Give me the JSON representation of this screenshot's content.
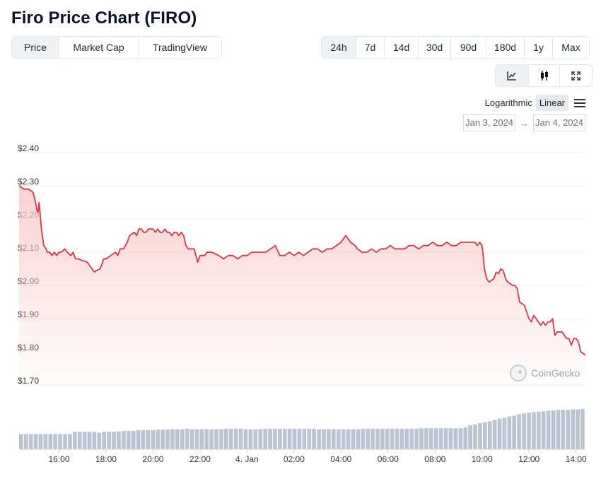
{
  "header": {
    "title": "Firo Price Chart (FIRO)"
  },
  "view_tabs": [
    {
      "label": "Price",
      "active": true
    },
    {
      "label": "Market Cap",
      "active": false
    },
    {
      "label": "TradingView",
      "active": false
    }
  ],
  "range_tabs": [
    {
      "label": "24h",
      "active": true
    },
    {
      "label": "7d",
      "active": false
    },
    {
      "label": "14d",
      "active": false
    },
    {
      "label": "30d",
      "active": false
    },
    {
      "label": "90d",
      "active": false
    },
    {
      "label": "180d",
      "active": false
    },
    {
      "label": "1y",
      "active": false
    },
    {
      "label": "Max",
      "active": false
    }
  ],
  "chart_type_tabs": [
    {
      "icon": "line-chart-icon",
      "active": true
    },
    {
      "icon": "candlestick-icon",
      "active": false
    },
    {
      "icon": "expand-icon",
      "active": false
    }
  ],
  "scale": {
    "logarithmic": "Logarithmic",
    "linear": "Linear",
    "active": "Linear"
  },
  "dates": {
    "from": "Jan 3, 2024",
    "to": "Jan 4, 2024",
    "arrow": "→"
  },
  "brand": {
    "label": "CoinGecko"
  },
  "colors": {
    "line": "#dc3545",
    "fill": "#f9c9c9",
    "volume": "#bcc3d2",
    "grid": "#eceff3"
  },
  "chart_data": {
    "type": "area",
    "ylim": [
      1.7,
      2.4
    ],
    "y_ticks": [
      {
        "value": 2.4,
        "label": "$2.40"
      },
      {
        "value": 2.3,
        "label": "$2.30"
      },
      {
        "value": 2.2,
        "label": "$2.20"
      },
      {
        "value": 2.1,
        "label": "$2.10"
      },
      {
        "value": 2.0,
        "label": "$2.00"
      },
      {
        "value": 1.9,
        "label": "$1.90"
      },
      {
        "value": 1.8,
        "label": "$1.80"
      },
      {
        "value": 1.7,
        "label": "$1.70"
      }
    ],
    "xlim": [
      14.3,
      38.4
    ],
    "x_ticks": [
      {
        "value": 16,
        "label": "16:00"
      },
      {
        "value": 18,
        "label": "18:00"
      },
      {
        "value": 20,
        "label": "20:00"
      },
      {
        "value": 22,
        "label": "22:00"
      },
      {
        "value": 24,
        "label": "4. Jan"
      },
      {
        "value": 26,
        "label": "02:00"
      },
      {
        "value": 28,
        "label": "04:00"
      },
      {
        "value": 30,
        "label": "06:00"
      },
      {
        "value": 32,
        "label": "08:00"
      },
      {
        "value": 34,
        "label": "10:00"
      },
      {
        "value": 36,
        "label": "12:00"
      },
      {
        "value": 38,
        "label": "14:00"
      }
    ],
    "series": [
      {
        "x": [
          14.3,
          14.5,
          14.7,
          14.9,
          15.0,
          15.05,
          15.1,
          15.15,
          15.25,
          15.35,
          15.45,
          15.5,
          15.6,
          15.7,
          15.8,
          15.9,
          16.0,
          16.1,
          16.25,
          16.35,
          16.5,
          16.6,
          16.7,
          16.8,
          17.0,
          17.2,
          17.5,
          17.6,
          17.75,
          17.9,
          18.0,
          18.2,
          18.4,
          18.5,
          18.6,
          18.75,
          18.9,
          19.0,
          19.2,
          19.3,
          19.4,
          19.5,
          19.6,
          19.7,
          19.8,
          19.9,
          20.0,
          20.1,
          20.2,
          20.3,
          20.4,
          20.5,
          20.6,
          20.7,
          20.8,
          20.9,
          21.0,
          21.1,
          21.2,
          21.3,
          21.4,
          21.5,
          21.6,
          21.75,
          21.9,
          22.0,
          22.2,
          22.3,
          22.5,
          22.8,
          23.0,
          23.2,
          23.4,
          23.6,
          23.8,
          24.0,
          24.2,
          24.4,
          24.6,
          24.8,
          25.0,
          25.2,
          25.4,
          25.5,
          25.6,
          25.8,
          26.0,
          26.2,
          26.4,
          26.6,
          26.8,
          27.0,
          27.2,
          27.4,
          27.6,
          27.8,
          28.0,
          28.2,
          28.4,
          28.6,
          28.7,
          28.9,
          29.1,
          29.3,
          29.5,
          29.7,
          29.9,
          30.1,
          30.3,
          30.5,
          30.7,
          30.9,
          31.1,
          31.3,
          31.5,
          31.7,
          31.9,
          32.1,
          32.3,
          32.5,
          32.7,
          32.9,
          33.1,
          33.3,
          33.5,
          33.7,
          33.8,
          33.9,
          34.0,
          34.05,
          34.1,
          34.2,
          34.3,
          34.4,
          34.5,
          34.6,
          34.7,
          34.8,
          34.9,
          35.0,
          35.1,
          35.2,
          35.3,
          35.4,
          35.5,
          35.6,
          35.8,
          36.0,
          36.1,
          36.2,
          36.3,
          36.4,
          36.5,
          36.6,
          36.7,
          36.8,
          36.9,
          37.0,
          37.1,
          37.2,
          37.3,
          37.4,
          37.5,
          37.6,
          37.7,
          37.8,
          37.9,
          38.0,
          38.1,
          38.2,
          38.4
        ],
        "values": [
          2.3,
          2.29,
          2.29,
          2.28,
          2.25,
          2.23,
          2.22,
          2.25,
          2.17,
          2.12,
          2.11,
          2.1,
          2.1,
          2.09,
          2.1,
          2.09,
          2.1,
          2.1,
          2.11,
          2.1,
          2.09,
          2.1,
          2.08,
          2.08,
          2.075,
          2.07,
          2.04,
          2.045,
          2.05,
          2.08,
          2.08,
          2.09,
          2.1,
          2.09,
          2.11,
          2.11,
          2.13,
          2.15,
          2.16,
          2.15,
          2.17,
          2.17,
          2.16,
          2.16,
          2.17,
          2.17,
          2.17,
          2.16,
          2.17,
          2.16,
          2.16,
          2.17,
          2.16,
          2.16,
          2.15,
          2.16,
          2.16,
          2.15,
          2.16,
          2.15,
          2.12,
          2.11,
          2.11,
          2.11,
          2.07,
          2.09,
          2.09,
          2.1,
          2.1,
          2.09,
          2.08,
          2.09,
          2.09,
          2.08,
          2.09,
          2.09,
          2.1,
          2.1,
          2.1,
          2.1,
          2.11,
          2.12,
          2.09,
          2.09,
          2.09,
          2.1,
          2.09,
          2.1,
          2.09,
          2.1,
          2.11,
          2.11,
          2.1,
          2.11,
          2.11,
          2.12,
          2.13,
          2.15,
          2.13,
          2.12,
          2.11,
          2.1,
          2.1,
          2.11,
          2.1,
          2.11,
          2.11,
          2.12,
          2.11,
          2.11,
          2.11,
          2.12,
          2.12,
          2.11,
          2.12,
          2.12,
          2.13,
          2.12,
          2.12,
          2.13,
          2.12,
          2.12,
          2.13,
          2.13,
          2.13,
          2.13,
          2.12,
          2.13,
          2.12,
          2.09,
          2.05,
          2.02,
          2.01,
          2.015,
          2.02,
          2.04,
          2.035,
          2.05,
          2.045,
          2.02,
          2.01,
          2.005,
          2.0,
          2.0,
          1.99,
          1.95,
          1.94,
          1.9,
          1.89,
          1.91,
          1.9,
          1.89,
          1.88,
          1.89,
          1.88,
          1.89,
          1.89,
          1.9,
          1.85,
          1.86,
          1.86,
          1.86,
          1.85,
          1.84,
          1.84,
          1.82,
          1.84,
          1.84,
          1.83,
          1.8,
          1.79
        ]
      }
    ],
    "volume": {
      "type": "bar",
      "values": [
        0.35,
        0.35,
        0.35,
        0.35,
        0.35,
        0.35,
        0.35,
        0.35,
        0.35,
        0.35,
        0.35,
        0.4,
        0.4,
        0.4,
        0.4,
        0.4,
        0.38,
        0.4,
        0.4,
        0.4,
        0.41,
        0.42,
        0.42,
        0.42,
        0.44,
        0.44,
        0.44,
        0.44,
        0.45,
        0.45,
        0.45,
        0.46,
        0.46,
        0.46,
        0.47,
        0.46,
        0.46,
        0.46,
        0.46,
        0.46,
        0.46,
        0.46,
        0.47,
        0.47,
        0.47,
        0.47,
        0.46,
        0.46,
        0.46,
        0.46,
        0.47,
        0.47,
        0.47,
        0.47,
        0.47,
        0.47,
        0.47,
        0.47,
        0.47,
        0.47,
        0.47,
        0.46,
        0.46,
        0.46,
        0.46,
        0.46,
        0.46,
        0.46,
        0.46,
        0.46,
        0.47,
        0.47,
        0.47,
        0.47,
        0.47,
        0.47,
        0.47,
        0.47,
        0.47,
        0.47,
        0.47,
        0.47,
        0.48,
        0.48,
        0.48,
        0.48,
        0.48,
        0.48,
        0.48,
        0.48,
        0.48,
        0.5,
        0.55,
        0.57,
        0.6,
        0.62,
        0.64,
        0.67,
        0.7,
        0.72,
        0.75,
        0.77,
        0.8,
        0.82,
        0.84,
        0.85,
        0.86,
        0.87,
        0.88,
        0.89,
        0.9,
        0.9,
        0.9,
        0.91,
        0.91,
        0.92
      ]
    }
  }
}
